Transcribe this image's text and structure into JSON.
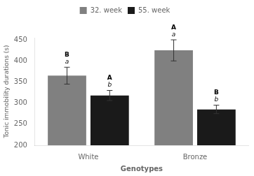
{
  "chart_data": {
    "type": "bar",
    "xlabel": "Genotypes",
    "ylabel": "Tonic immobility durations (s)",
    "categories": [
      "White",
      "Bronze"
    ],
    "series": [
      {
        "name": "32. week",
        "color": "#808080",
        "values": [
          365,
          425
        ],
        "errors": [
          20,
          25
        ],
        "annotations": [
          [
            "B",
            "a"
          ],
          [
            "A",
            "a"
          ]
        ]
      },
      {
        "name": "55. week",
        "color": "#1a1a1a",
        "values": [
          318,
          285
        ],
        "errors": [
          12,
          10
        ],
        "annotations": [
          [
            "A",
            "b"
          ],
          [
            "B",
            "b"
          ]
        ]
      }
    ],
    "ylim": [
      200,
      455
    ],
    "yticks": [
      200,
      250,
      300,
      350,
      400,
      450
    ],
    "grid": false,
    "legend": "top"
  }
}
